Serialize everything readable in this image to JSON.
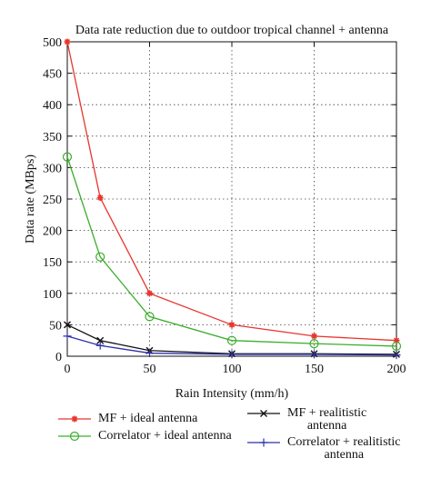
{
  "chart_data": {
    "type": "line",
    "title": "Data rate reduction due to outdoor tropical channel + antenna",
    "xlabel": "Rain Intensity (mm/h)",
    "ylabel": "Data rate (MBps)",
    "xlim": [
      0,
      200
    ],
    "ylim": [
      0,
      500
    ],
    "xticks": [
      "0",
      "50",
      "100",
      "150",
      "200"
    ],
    "yticks": [
      "0",
      "50",
      "100",
      "150",
      "200",
      "250",
      "300",
      "350",
      "400",
      "450",
      "500"
    ],
    "grid": true,
    "legend_position": "bottom",
    "x": [
      0,
      20,
      50,
      100,
      150,
      200
    ],
    "series": [
      {
        "name": "MF + ideal antenna",
        "color": "#e8352e",
        "marker": "star",
        "values": [
          500,
          252,
          100,
          50,
          32,
          25
        ]
      },
      {
        "name": "Correlator + ideal antenna",
        "color": "#3aae2a",
        "marker": "circle",
        "values": [
          317,
          158,
          63,
          25,
          20,
          16
        ]
      },
      {
        "name": "MF + realitistic\nantenna",
        "color": "#111111",
        "marker": "x",
        "values": [
          50,
          25,
          9,
          4,
          4,
          3
        ]
      },
      {
        "name": "Correlator + realitistic\nantenna",
        "color": "#2d2fa8",
        "marker": "plus",
        "values": [
          32,
          17,
          5,
          3,
          3,
          2
        ]
      }
    ]
  }
}
